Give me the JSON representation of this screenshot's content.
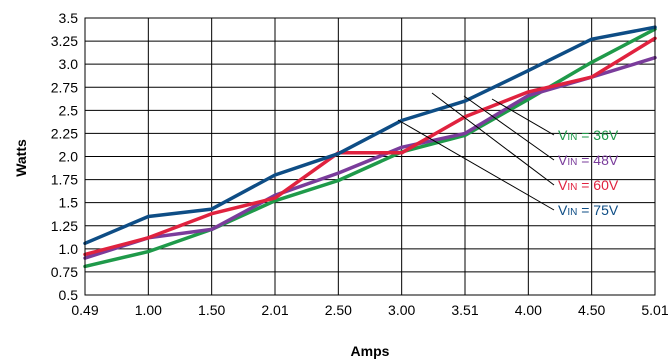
{
  "chart_data": {
    "type": "line",
    "xlabel": "Amps",
    "ylabel": "Watts",
    "x": [
      0.49,
      1.0,
      1.5,
      2.01,
      2.5,
      3.0,
      3.51,
      4.0,
      4.5,
      5.01
    ],
    "x_tick_labels": [
      "0.49",
      "1.00",
      "1.50",
      "2.01",
      "2.50",
      "3.00",
      "3.51",
      "4.00",
      "4.50",
      "5.01"
    ],
    "y_tick_labels": [
      "0.5",
      "0.75",
      "1.0",
      "1.25",
      "1.5",
      "1.75",
      "2.0",
      "2.25",
      "2.5",
      "2.75",
      "3.0",
      "3.25",
      "3.5"
    ],
    "ylim": [
      0.5,
      3.5
    ],
    "grid": true,
    "legend_placement": "right",
    "series": [
      {
        "prefix": "V",
        "sub": "IN",
        "suffix": " = 36V",
        "color": "#1f9a4a",
        "values": [
          0.81,
          0.97,
          1.21,
          1.52,
          1.74,
          2.05,
          2.23,
          2.62,
          3.02,
          3.38
        ]
      },
      {
        "prefix": "V",
        "sub": "IN",
        "suffix": " = 48V",
        "color": "#7a3c9b",
        "values": [
          0.9,
          1.12,
          1.21,
          1.58,
          1.82,
          2.1,
          2.25,
          2.66,
          2.86,
          3.07
        ]
      },
      {
        "prefix": "V",
        "sub": "IN",
        "suffix": " = 60V",
        "color": "#e0223f",
        "values": [
          0.94,
          1.12,
          1.38,
          1.55,
          2.04,
          2.04,
          2.43,
          2.7,
          2.86,
          3.28
        ]
      },
      {
        "prefix": "V",
        "sub": "IN",
        "suffix": " = 75V",
        "color": "#0e4d85",
        "values": [
          1.06,
          1.35,
          1.43,
          1.8,
          2.03,
          2.39,
          2.6,
          2.93,
          3.27,
          3.4
        ]
      }
    ]
  }
}
